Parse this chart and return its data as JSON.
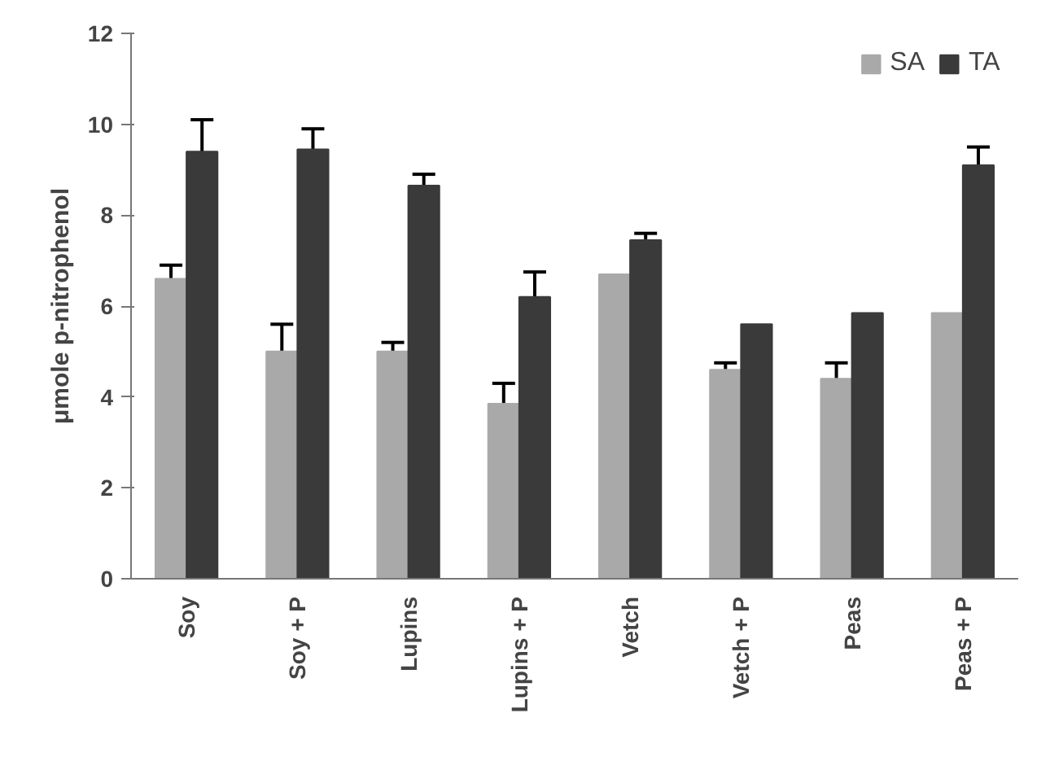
{
  "chart_data": {
    "type": "bar",
    "ylabel": "μmole p-nitrophenol",
    "categories": [
      "Soy",
      "Soy + P",
      "Lupins",
      "Lupins + P",
      "Vetch",
      "Vetch + P",
      "Peas",
      "Peas + P"
    ],
    "series": [
      {
        "name": "SA",
        "color": "#a9a9a9",
        "values": [
          6.6,
          5.0,
          5.0,
          3.85,
          6.7,
          4.6,
          4.4,
          5.85
        ],
        "errors": [
          [
            6.6,
            6.9
          ],
          [
            5.0,
            5.6
          ],
          [
            5.0,
            5.2
          ],
          [
            3.85,
            4.3
          ],
          null,
          [
            4.6,
            4.75
          ],
          [
            4.4,
            4.75
          ],
          null
        ]
      },
      {
        "name": "TA",
        "color": "#3a3a3a",
        "values": [
          9.4,
          9.45,
          8.65,
          6.2,
          7.45,
          5.6,
          5.85,
          9.1
        ],
        "errors": [
          [
            9.4,
            10.1
          ],
          [
            9.45,
            9.9
          ],
          [
            8.65,
            8.9
          ],
          [
            6.2,
            6.75
          ],
          [
            7.45,
            7.6
          ],
          null,
          null,
          [
            9.1,
            9.5
          ]
        ]
      }
    ],
    "ylim": [
      0,
      12
    ],
    "yticks": [
      0,
      2,
      4,
      6,
      8,
      10,
      12
    ],
    "grid": false,
    "legend": "top right"
  }
}
